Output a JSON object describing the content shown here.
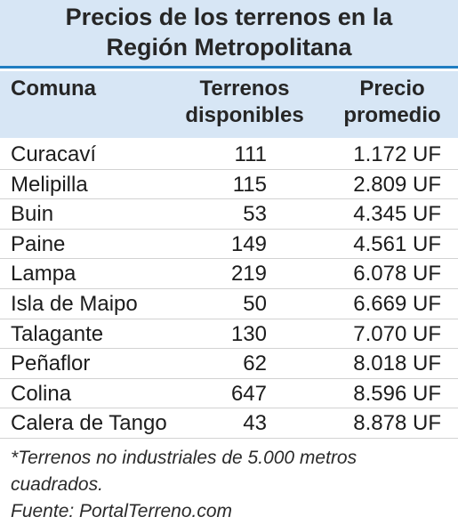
{
  "chart_data": {
    "type": "table",
    "title_lines": [
      "Precios de los terrenos en la",
      "Región Metropolitana"
    ],
    "columns": [
      {
        "lines": [
          "Comuna"
        ]
      },
      {
        "lines": [
          "Terrenos",
          "disponibles"
        ]
      },
      {
        "lines": [
          "Precio",
          "promedio"
        ]
      }
    ],
    "rows": [
      {
        "comuna": "Curacaví",
        "terrenos": "111",
        "precio": "1.172 UF"
      },
      {
        "comuna": "Melipilla",
        "terrenos": "115",
        "precio": "2.809 UF"
      },
      {
        "comuna": "Buin",
        "terrenos": "53",
        "precio": "4.345 UF"
      },
      {
        "comuna": "Paine",
        "terrenos": "149",
        "precio": "4.561 UF"
      },
      {
        "comuna": "Lampa",
        "terrenos": "219",
        "precio": "6.078 UF"
      },
      {
        "comuna": "Isla de Maipo",
        "terrenos": "50",
        "precio": "6.669 UF"
      },
      {
        "comuna": "Talagante",
        "terrenos": "130",
        "precio": "7.070 UF"
      },
      {
        "comuna": "Peñaflor",
        "terrenos": "62",
        "precio": "8.018 UF"
      },
      {
        "comuna": "Colina",
        "terrenos": "647",
        "precio": "8.596 UF"
      },
      {
        "comuna": "Calera de Tango",
        "terrenos": "43",
        "precio": "8.878 UF"
      }
    ],
    "footnote_lines": [
      "*Terrenos no industriales de 5.000 metros",
      "cuadrados."
    ],
    "source": "Fuente: PortalTerreno.com"
  },
  "colors": {
    "header_background": "#d7e6f5",
    "title_rule": "#1f7ec2",
    "row_divider": "#d2d2d2"
  }
}
